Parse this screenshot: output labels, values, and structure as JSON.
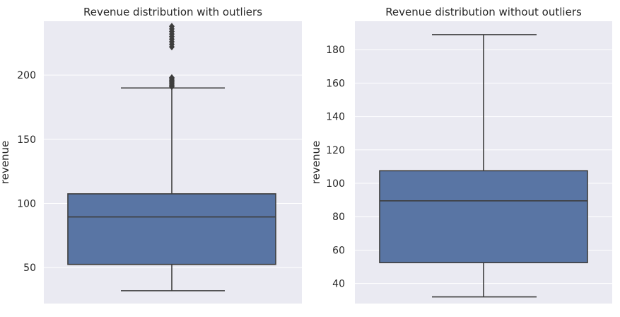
{
  "chart_data": [
    {
      "type": "boxplot",
      "title": "Revenue distribution with outliers",
      "xlabel": "",
      "ylabel": "revenue",
      "ylim": [
        22,
        242
      ],
      "yticks": [
        50,
        100,
        150,
        200
      ],
      "grid": true,
      "box": {
        "min": 32,
        "q1": 52.5,
        "median": 89.5,
        "q3": 107.5,
        "max": 190,
        "color": "#5975a4"
      },
      "outliers": [
        191,
        192,
        193,
        194,
        195,
        196,
        197,
        198,
        222,
        224,
        226,
        228,
        230,
        232,
        234,
        236,
        238
      ]
    },
    {
      "type": "boxplot",
      "title": "Revenue distribution without outliers",
      "xlabel": "",
      "ylabel": "revenue",
      "ylim": [
        28,
        197
      ],
      "yticks": [
        40,
        60,
        80,
        100,
        120,
        140,
        160,
        180
      ],
      "grid": true,
      "box": {
        "min": 32,
        "q1": 52.5,
        "median": 89.5,
        "q3": 107.5,
        "max": 189,
        "color": "#5975a4"
      },
      "outliers": []
    }
  ]
}
